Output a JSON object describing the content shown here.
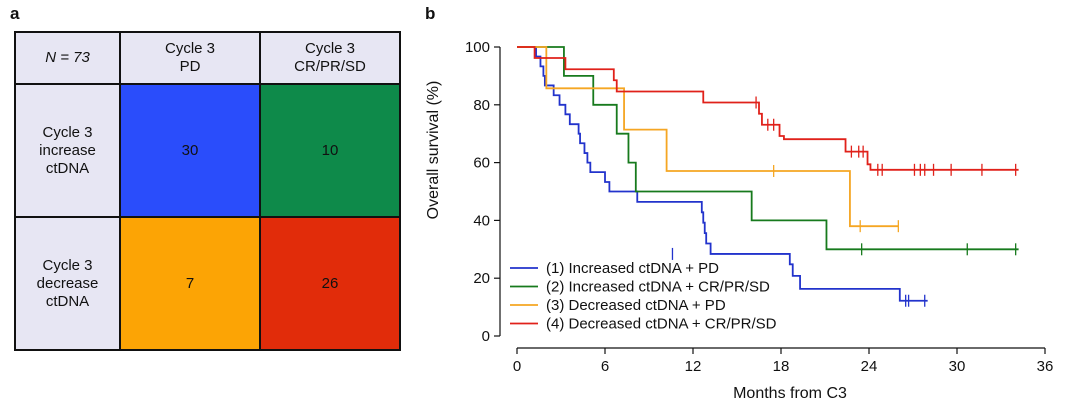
{
  "panel_a": {
    "panel_label": "a",
    "corner_label": "N = 73",
    "columns": [
      {
        "line1": "Cycle 3",
        "line2": "PD"
      },
      {
        "line1": "Cycle 3",
        "line2": "CR/PR/SD"
      }
    ],
    "rows": [
      {
        "line1": "Cycle 3",
        "line2": "increase",
        "line3": "ctDNA",
        "values": [
          "30",
          "10"
        ]
      },
      {
        "line1": "Cycle 3",
        "line2": "decrease",
        "line3": "ctDNA",
        "values": [
          "7",
          "26"
        ]
      }
    ],
    "colors": {
      "r0c0": "#2a4dfb",
      "r0c1": "#0e8a4a",
      "r1c0": "#fca405",
      "r1c1": "#e12c0a",
      "header": "#e7e6f3"
    }
  },
  "panel_b": {
    "panel_label": "b"
  },
  "chart_data": {
    "type": "line",
    "subtype": "kaplan-meier",
    "xlabel": "Months from C3",
    "ylabel": "Overall survival (%)",
    "xlim": [
      0,
      36
    ],
    "ylim": [
      0,
      100
    ],
    "xticks": [
      0,
      6,
      12,
      18,
      24,
      30,
      36
    ],
    "yticks": [
      0,
      20,
      40,
      60,
      80,
      100
    ],
    "legend_position": "bottom-left",
    "series": [
      {
        "name": "(1) Increased ctDNA + PD",
        "color": "#2233cc",
        "steps": [
          [
            0,
            100
          ],
          [
            1.2,
            100
          ],
          [
            1.3,
            96.7
          ],
          [
            1.6,
            93.3
          ],
          [
            1.8,
            90
          ],
          [
            1.9,
            86.7
          ],
          [
            2.5,
            83.3
          ],
          [
            2.9,
            80
          ],
          [
            3.3,
            76.7
          ],
          [
            3.6,
            73.3
          ],
          [
            4.2,
            70
          ],
          [
            4.3,
            66.7
          ],
          [
            4.6,
            63.3
          ],
          [
            4.8,
            60
          ],
          [
            5.0,
            56.7
          ],
          [
            6.0,
            53.3
          ],
          [
            6.3,
            50
          ],
          [
            8.2,
            46.4
          ],
          [
            12.6,
            42.8
          ],
          [
            12.7,
            39.2
          ],
          [
            12.8,
            35.6
          ],
          [
            12.9,
            32
          ],
          [
            13.2,
            28.4
          ],
          [
            18.6,
            24.8
          ],
          [
            18.8,
            20.8
          ],
          [
            19.3,
            16.3
          ],
          [
            26.1,
            12.2
          ],
          [
            28,
            12.2
          ]
        ],
        "censors": [
          [
            10.6,
            28.4
          ],
          [
            26.5,
            12.2
          ],
          [
            26.7,
            12.2
          ],
          [
            27.8,
            12.2
          ]
        ]
      },
      {
        "name": "(2) Increased ctDNA + CR/PR/SD",
        "color": "#177a1d",
        "steps": [
          [
            0,
            100
          ],
          [
            3.0,
            100
          ],
          [
            3.2,
            90
          ],
          [
            5.2,
            80
          ],
          [
            6.8,
            70
          ],
          [
            7.6,
            60
          ],
          [
            8.1,
            50
          ],
          [
            16.0,
            40
          ],
          [
            21.1,
            30
          ],
          [
            34.2,
            30
          ]
        ],
        "censors": [
          [
            23.5,
            30
          ],
          [
            30.7,
            30
          ],
          [
            34.0,
            30
          ]
        ]
      },
      {
        "name": "(3) Decreased ctDNA + PD",
        "color": "#f5a623",
        "steps": [
          [
            0,
            100
          ],
          [
            1.8,
            100
          ],
          [
            2.0,
            85.7
          ],
          [
            7.3,
            71.4
          ],
          [
            10.2,
            57.1
          ],
          [
            22.7,
            38
          ],
          [
            26.0,
            38
          ]
        ],
        "censors": [
          [
            17.5,
            57.1
          ],
          [
            23.4,
            38
          ],
          [
            26.0,
            38
          ]
        ]
      },
      {
        "name": "(4) Decreased ctDNA + CR/PR/SD",
        "color": "#e0211a",
        "steps": [
          [
            0,
            100
          ],
          [
            1.0,
            100
          ],
          [
            1.2,
            96.2
          ],
          [
            3.3,
            92.3
          ],
          [
            6.6,
            88.5
          ],
          [
            6.8,
            84.6
          ],
          [
            12.7,
            80.8
          ],
          [
            16.5,
            76.9
          ],
          [
            16.7,
            73.1
          ],
          [
            17.9,
            69.2
          ],
          [
            18.2,
            68.1
          ],
          [
            22.4,
            63.8
          ],
          [
            23.9,
            59.4
          ],
          [
            24.1,
            57.5
          ],
          [
            34.2,
            57.5
          ]
        ],
        "censors": [
          [
            16.3,
            80.8
          ],
          [
            17.1,
            73.1
          ],
          [
            17.5,
            73.1
          ],
          [
            22.8,
            63.8
          ],
          [
            23.3,
            63.8
          ],
          [
            23.6,
            63.8
          ],
          [
            24.6,
            57.5
          ],
          [
            24.9,
            57.5
          ],
          [
            27.1,
            57.5
          ],
          [
            27.5,
            57.5
          ],
          [
            27.8,
            57.5
          ],
          [
            28.4,
            57.5
          ],
          [
            29.6,
            57.5
          ],
          [
            31.7,
            57.5
          ],
          [
            34.0,
            57.5
          ]
        ]
      }
    ]
  }
}
